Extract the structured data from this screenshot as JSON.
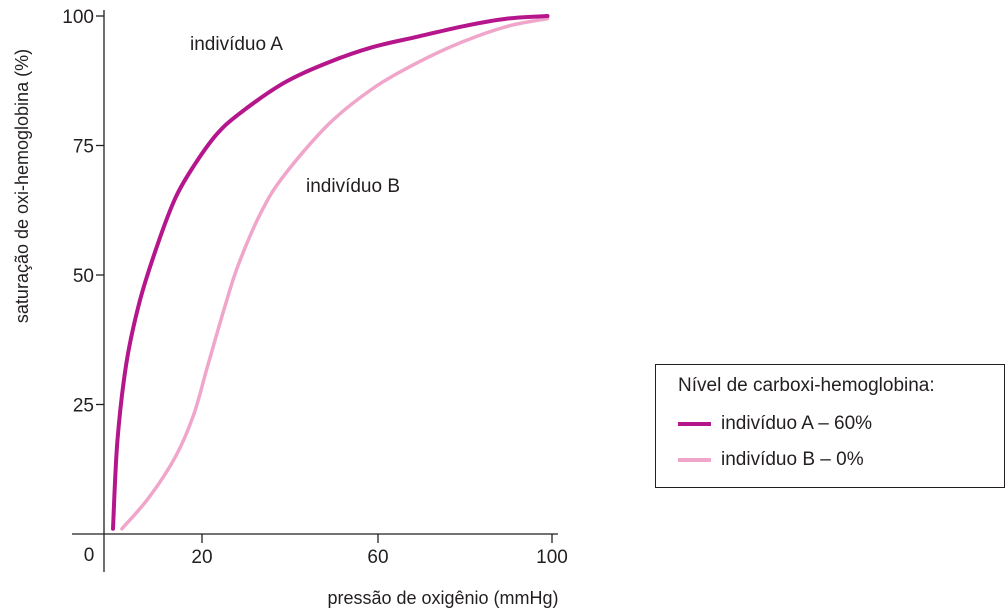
{
  "chart_data": {
    "type": "line",
    "title": "",
    "xlabel": "pressão de oxigênio (mmHg)",
    "ylabel": "saturação de oxi-hemoglobina (%)",
    "x_ticks": [
      "0",
      "20",
      "60",
      "100"
    ],
    "y_ticks": [
      "25",
      "50",
      "75",
      "100"
    ],
    "x_origin_label": "0",
    "y_tick_values": [
      25,
      50,
      75,
      100
    ],
    "ylim": [
      0,
      100
    ],
    "grid": false,
    "legend": {
      "title": "Nível de carboxi-hemoglobina:",
      "position": "right",
      "entries": [
        "indivíduo A – 60%",
        "indivíduo B – 0%"
      ]
    },
    "annotations": [
      "indivíduo A",
      "indivíduo B"
    ],
    "series": [
      {
        "name": "indivíduo A – 60%",
        "color": "#b5168c",
        "x": [
          2,
          3,
          5,
          8,
          12,
          16,
          20,
          25,
          30,
          40,
          50,
          60,
          70,
          80,
          90,
          99
        ],
        "y": [
          1,
          18,
          33,
          45,
          56,
          65,
          71,
          77,
          81,
          87,
          91,
          94,
          96,
          98,
          99.5,
          100
        ]
      },
      {
        "name": "indivíduo B – 0%",
        "color": "#f0a6ca",
        "x": [
          4,
          10,
          16,
          20,
          23,
          27,
          30,
          35,
          40,
          50,
          60,
          70,
          80,
          90,
          99
        ],
        "y": [
          1,
          7,
          15,
          23,
          32,
          44,
          52,
          62,
          69,
          79,
          86,
          91,
          95,
          98,
          99.5
        ]
      }
    ]
  }
}
